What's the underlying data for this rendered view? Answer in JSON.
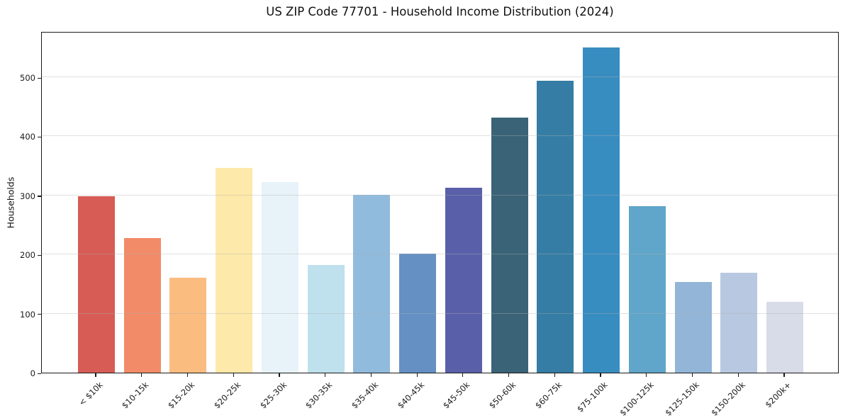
{
  "figure": {
    "title": "US ZIP Code 77701 - Household Income Distribution (2024)",
    "ylabel": "Households"
  },
  "chart_data": {
    "type": "bar",
    "title": "US ZIP Code 77701 - Household Income Distribution (2024)",
    "xlabel": "",
    "ylabel": "Households",
    "categories": [
      "< $10k",
      "$10-15k",
      "$15-20k",
      "$20-25k",
      "$25-30k",
      "$30-35k",
      "$35-40k",
      "$40-45k",
      "$45-50k",
      "$50-60k",
      "$60-75k",
      "$75-100k",
      "$100-125k",
      "$125-150k",
      "$150-200k",
      "$200k+"
    ],
    "values": [
      299,
      228,
      161,
      347,
      323,
      182,
      301,
      201,
      313,
      432,
      494,
      550,
      282,
      153,
      169,
      120
    ],
    "bar_colors": [
      "#d65c55",
      "#f28b68",
      "#fbbc7f",
      "#fde9a9",
      "#e7f3f8",
      "#bfe0ed",
      "#90bbdc",
      "#6590c3",
      "#5a5fa9",
      "#3a6377",
      "#357da4",
      "#388dc0",
      "#60a5ca",
      "#92b5d8",
      "#b8c8e0",
      "#d8dbe8"
    ],
    "ylim": [
      0,
      578
    ],
    "yticks": [
      0,
      100,
      200,
      300,
      400,
      500
    ],
    "grid": "horizontal",
    "gridline_color": "#b0b0b0",
    "legend": "none",
    "x_tick_rotation": 45
  }
}
